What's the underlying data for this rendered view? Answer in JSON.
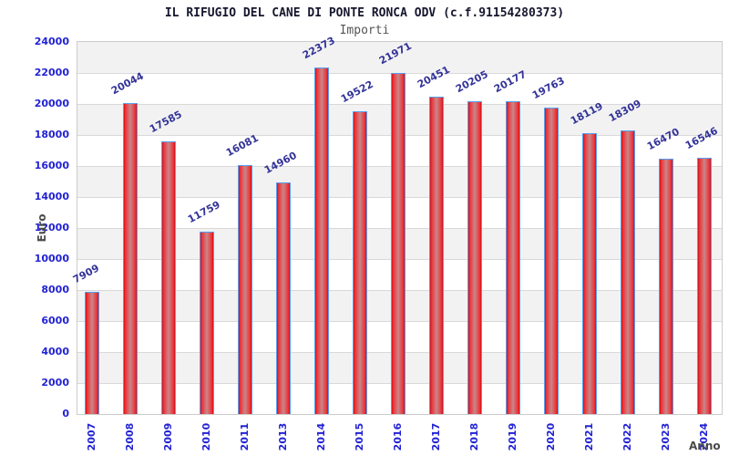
{
  "page": {
    "background": "#ffffff"
  },
  "chart_data": {
    "type": "bar",
    "title": "IL RIFUGIO DEL CANE DI PONTE RONCA ODV (c.f.91154280373)",
    "subtitle": "Importi",
    "xlabel": "Anno",
    "ylabel": "Euro",
    "categories": [
      "2007",
      "2008",
      "2009",
      "2010",
      "2011",
      "2013",
      "2014",
      "2015",
      "2016",
      "2017",
      "2018",
      "2019",
      "2020",
      "2021",
      "2022",
      "2023",
      "2024"
    ],
    "values": [
      7909,
      20044,
      17585,
      11759,
      16081,
      14960,
      22373,
      19522,
      21971,
      20451,
      20205,
      20177,
      19763,
      18119,
      18309,
      16470,
      16546
    ],
    "ylim": [
      0,
      24000
    ],
    "ytick_step": 2000,
    "grid": true,
    "legend": false,
    "bar_value_labels_shown": true,
    "x_tick_rotation_deg": -90,
    "value_label_rotation_deg": -28,
    "colors": {
      "bar_border": "#55a0f0",
      "bar_red_edge": "#d31016",
      "bar_red_mid": "#c8878a",
      "tick_text": "#2222d4",
      "value_label_text": "#333399",
      "band_light": "#ffffff",
      "band_dark": "#f2f2f2",
      "gridline": "#d9d9d9",
      "plot_border": "#cccccc",
      "title_text": "#16162e",
      "subtitle_text": "#555555",
      "axis_label_text": "#4a4a4a"
    }
  }
}
